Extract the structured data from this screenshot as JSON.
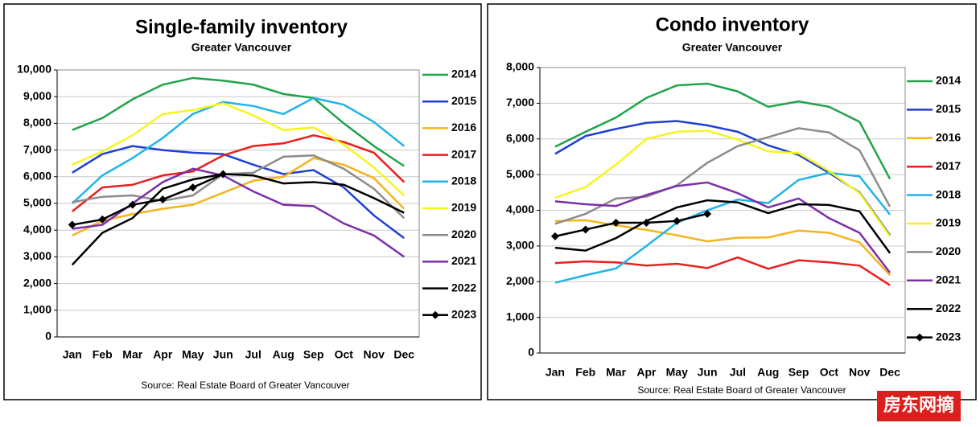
{
  "chart_data": [
    {
      "type": "line",
      "title": "Single-family inventory",
      "subtitle": "Greater Vancouver",
      "source": "Source: Real Estate Board of Greater Vancouver",
      "categories": [
        "Jan",
        "Feb",
        "Mar",
        "Apr",
        "May",
        "Jun",
        "Jul",
        "Aug",
        "Sep",
        "Oct",
        "Nov",
        "Dec"
      ],
      "ylim": [
        0,
        10000
      ],
      "yticks": [
        0,
        {
          "value": 1000,
          "label": "1,000"
        },
        {
          "value": 2000,
          "label": "2,000"
        },
        {
          "value": 3000,
          "label": "3,000"
        },
        {
          "value": 4000,
          "label": "4,000"
        },
        {
          "value": 5000,
          "label": "5,000"
        },
        {
          "value": 6000,
          "label": "6,000"
        },
        {
          "value": 7000,
          "label": "7,000"
        },
        {
          "value": 8000,
          "label": "8,000"
        },
        {
          "value": 9000,
          "label": "9,000"
        },
        {
          "value": 10000,
          "label": "10,000"
        }
      ],
      "grid": true,
      "legend": "right",
      "series": [
        {
          "name": "2014",
          "color": "#1fa34a",
          "values": [
            7750,
            8200,
            8900,
            9450,
            9700,
            9600,
            9450,
            9100,
            8950,
            8000,
            7150,
            6400
          ]
        },
        {
          "name": "2015",
          "color": "#1f3fd1",
          "values": [
            6150,
            6850,
            7150,
            7000,
            6900,
            6850,
            6450,
            6100,
            6250,
            5600,
            4550,
            3700
          ]
        },
        {
          "name": "2016",
          "color": "#f5b41e",
          "values": [
            3800,
            4350,
            4600,
            4800,
            4950,
            5400,
            5850,
            6000,
            6700,
            6450,
            5950,
            4800
          ]
        },
        {
          "name": "2017",
          "color": "#e8201e",
          "values": [
            4700,
            5600,
            5700,
            6050,
            6200,
            6800,
            7150,
            7250,
            7550,
            7300,
            6900,
            5800
          ]
        },
        {
          "name": "2018",
          "color": "#1fb4e8",
          "values": [
            5000,
            6050,
            6700,
            7450,
            8350,
            8800,
            8650,
            8350,
            8950,
            8700,
            8050,
            7150
          ]
        },
        {
          "name": "2019",
          "color": "#f5f51e",
          "values": [
            6450,
            6950,
            7550,
            8350,
            8500,
            8750,
            8300,
            7750,
            7850,
            7200,
            6350,
            5300
          ]
        },
        {
          "name": "2020",
          "color": "#8c8c8c",
          "values": [
            5050,
            5250,
            5300,
            5100,
            5300,
            6100,
            6150,
            6750,
            6800,
            6300,
            5550,
            4450
          ]
        },
        {
          "name": "2021",
          "color": "#7b2fa8",
          "values": [
            4050,
            4200,
            5000,
            5800,
            6300,
            6050,
            5450,
            4950,
            4900,
            4250,
            3800,
            3000
          ]
        },
        {
          "name": "2022",
          "color": "#000000",
          "values": [
            2700,
            3900,
            4450,
            5550,
            5900,
            6100,
            6050,
            5750,
            5800,
            5700,
            5200,
            4650
          ]
        },
        {
          "name": "2023",
          "color": "#000000",
          "marker": "diamond",
          "values": [
            4200,
            4400,
            4950,
            5150,
            5600,
            6100,
            null,
            null,
            null,
            null,
            null,
            null
          ]
        }
      ]
    },
    {
      "type": "line",
      "title": "Condo inventory",
      "subtitle": "Greater Vancouver",
      "source": "Source: Real Estate Board of Greater Vancouver",
      "categories": [
        "Jan",
        "Feb",
        "Mar",
        "Apr",
        "May",
        "Jun",
        "Jul",
        "Aug",
        "Sep",
        "Oct",
        "Nov",
        "Dec"
      ],
      "ylim": [
        0,
        8000
      ],
      "yticks": [
        0,
        {
          "value": 1000,
          "label": "1,000"
        },
        {
          "value": 2000,
          "label": "2,000"
        },
        {
          "value": 3000,
          "label": "3,000"
        },
        {
          "value": 4000,
          "label": "4,000"
        },
        {
          "value": 5000,
          "label": "5,000"
        },
        {
          "value": 6000,
          "label": "6,000"
        },
        {
          "value": 7000,
          "label": "7,000"
        },
        {
          "value": 8000,
          "label": "8,000"
        }
      ],
      "grid": true,
      "legend": "right",
      "series": [
        {
          "name": "2014",
          "color": "#1fa34a",
          "values": [
            5780,
            6200,
            6600,
            7150,
            7500,
            7550,
            7330,
            6900,
            7050,
            6900,
            6480,
            4880
          ]
        },
        {
          "name": "2015",
          "color": "#1f3fd1",
          "values": [
            5580,
            6080,
            6280,
            6450,
            6500,
            6380,
            6200,
            5820,
            5550,
            5050,
            4500,
            3300
          ]
        },
        {
          "name": "2016",
          "color": "#f5b41e",
          "values": [
            3700,
            3720,
            3580,
            3450,
            3300,
            3130,
            3230,
            3240,
            3430,
            3370,
            3100,
            2180
          ]
        },
        {
          "name": "2017",
          "color": "#e8201e",
          "values": [
            2520,
            2570,
            2540,
            2450,
            2500,
            2380,
            2680,
            2360,
            2600,
            2540,
            2450,
            1900
          ]
        },
        {
          "name": "2018",
          "color": "#1fb4e8",
          "values": [
            1970,
            2180,
            2370,
            3000,
            3650,
            4000,
            4300,
            4200,
            4850,
            5050,
            4950,
            3880
          ]
        },
        {
          "name": "2019",
          "color": "#f5f51e",
          "values": [
            4350,
            4650,
            5280,
            6000,
            6200,
            6230,
            5980,
            5650,
            5600,
            5100,
            4480,
            3270
          ]
        },
        {
          "name": "2020",
          "color": "#8c8c8c",
          "values": [
            3620,
            3900,
            4330,
            4380,
            4700,
            5330,
            5800,
            6050,
            6300,
            6180,
            5680,
            4100
          ]
        },
        {
          "name": "2021",
          "color": "#7b2fa8",
          "values": [
            4250,
            4170,
            4120,
            4430,
            4680,
            4780,
            4480,
            4080,
            4330,
            3780,
            3370,
            2250
          ]
        },
        {
          "name": "2022",
          "color": "#000000",
          "values": [
            2950,
            2870,
            3220,
            3700,
            4080,
            4280,
            4220,
            3920,
            4170,
            4150,
            3970,
            2800
          ]
        },
        {
          "name": "2023",
          "color": "#000000",
          "marker": "diamond",
          "values": [
            3270,
            3460,
            3650,
            3650,
            3700,
            3900,
            null,
            null,
            null,
            null,
            null,
            null
          ]
        }
      ]
    }
  ],
  "watermark": "房东网摘"
}
